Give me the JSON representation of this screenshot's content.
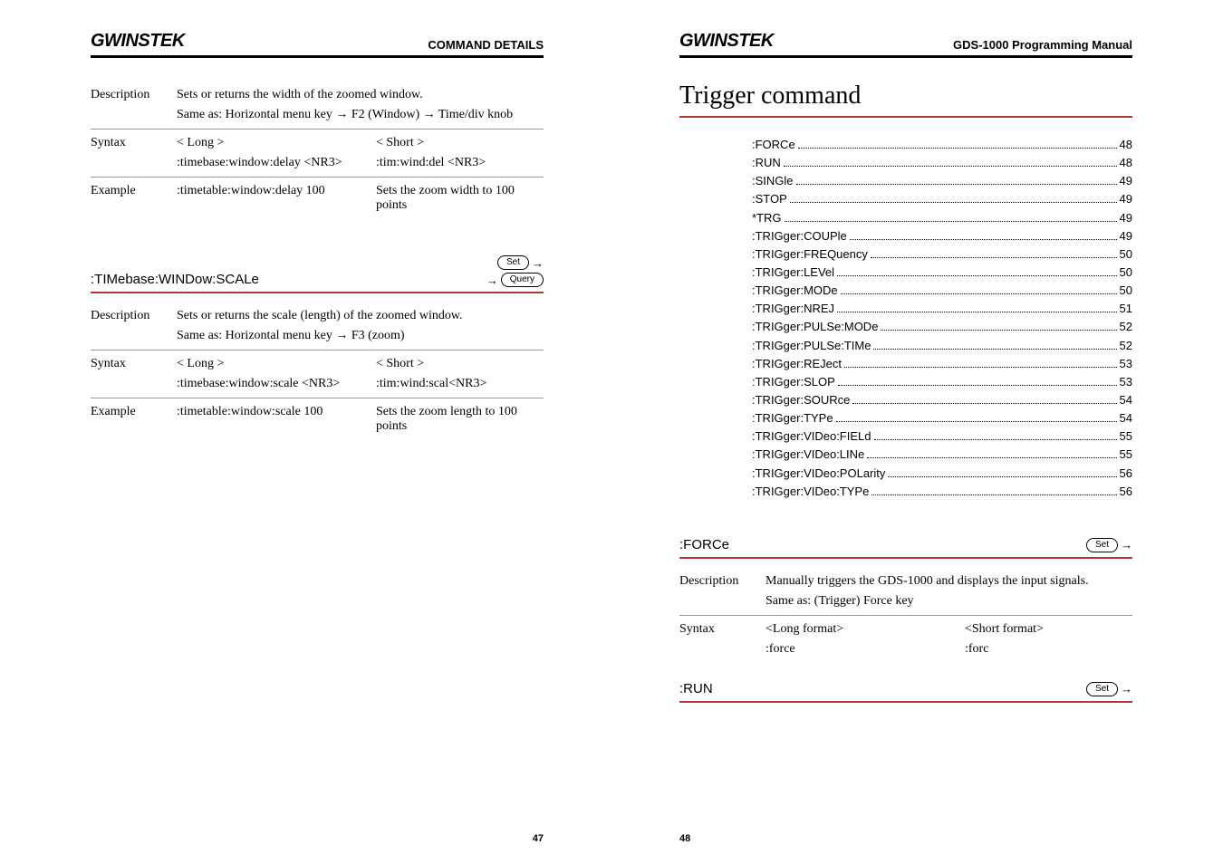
{
  "logo_text": "GWINSTEK",
  "left": {
    "header_title": "COMMAND DETAILS",
    "page_num": "47",
    "block1": {
      "desc_label": "Description",
      "desc1": "Sets or returns the width of the zoomed window.",
      "desc2": "Same as: Horizontal menu key → F2 (Window) → Time/div knob",
      "syntax_label": "Syntax",
      "long_h": "< Long >",
      "short_h": "< Short >",
      "long_v": ":timebase:window:delay <NR3>",
      "short_v": ":tim:wind:del <NR3>",
      "example_label": "Example",
      "ex_cmd": ":timetable:window:delay 100",
      "ex_txt": "Sets the zoom width to 100 points"
    },
    "block2": {
      "title": ":TIMebase:WINDow:SCALe",
      "badge_set": "Set",
      "badge_query": "Query",
      "desc_label": "Description",
      "desc1": "Sets or returns the scale (length) of the zoomed window.",
      "desc2": "Same as: Horizontal menu key → F3 (zoom)",
      "syntax_label": "Syntax",
      "long_h": "< Long >",
      "short_h": "< Short >",
      "long_v": ":timebase:window:scale <NR3>",
      "short_v": ":tim:wind:scal<NR3>",
      "example_label": "Example",
      "ex_cmd": ":timetable:window:scale 100",
      "ex_txt": "Sets the zoom length to 100 points"
    }
  },
  "right": {
    "header_title": "GDS-1000 Programming Manual",
    "page_num": "48",
    "section_title": "Trigger command",
    "toc": [
      {
        "cmd": ":FORCe",
        "pg": "48"
      },
      {
        "cmd": ":RUN",
        "pg": "48"
      },
      {
        "cmd": ":SINGle",
        "pg": "49"
      },
      {
        "cmd": ":STOP",
        "pg": "49"
      },
      {
        "cmd": "*TRG",
        "pg": "49"
      },
      {
        "cmd": ":TRIGger:COUPle",
        "pg": "49"
      },
      {
        "cmd": ":TRIGger:FREQuency",
        "pg": "50"
      },
      {
        "cmd": ":TRIGger:LEVel",
        "pg": "50"
      },
      {
        "cmd": ":TRIGger:MODe",
        "pg": "50"
      },
      {
        "cmd": ":TRIGger:NREJ",
        "pg": "51"
      },
      {
        "cmd": ":TRIGger:PULSe:MODe",
        "pg": "52"
      },
      {
        "cmd": ":TRIGger:PULSe:TIMe",
        "pg": "52"
      },
      {
        "cmd": ":TRIGger:REJect",
        "pg": "53"
      },
      {
        "cmd": ":TRIGger:SLOP",
        "pg": "53"
      },
      {
        "cmd": ":TRIGger:SOURce",
        "pg": "54"
      },
      {
        "cmd": ":TRIGger:TYPe",
        "pg": "54"
      },
      {
        "cmd": ":TRIGger:VIDeo:FIELd",
        "pg": "55"
      },
      {
        "cmd": ":TRIGger:VIDeo:LINe",
        "pg": "55"
      },
      {
        "cmd": ":TRIGger:VIDeo:POLarity",
        "pg": "56"
      },
      {
        "cmd": ":TRIGger:VIDeo:TYPe",
        "pg": "56"
      }
    ],
    "force": {
      "title": ":FORCe",
      "badge_set": "Set",
      "desc_label": "Description",
      "desc1": "Manually triggers the GDS-1000 and displays the input signals.",
      "desc2": "Same as: (Trigger) Force key",
      "syntax_label": "Syntax",
      "long_h": "<Long format>",
      "short_h": "<Short format>",
      "long_v": ":force",
      "short_v": ":forc"
    },
    "run": {
      "title": ":RUN",
      "badge_set": "Set"
    }
  }
}
